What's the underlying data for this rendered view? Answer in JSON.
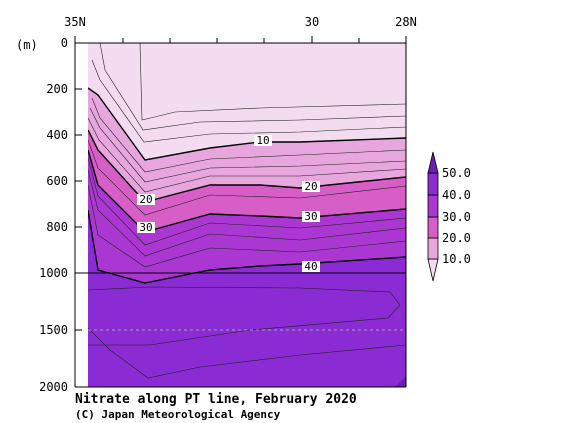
{
  "chart_data": {
    "type": "heatmap",
    "title": "Nitrate along PT line, February 2020",
    "credit": "(C) Japan Meteorological Agency",
    "ylabel": "(m)",
    "x_ticks": [
      "35N",
      "30",
      "28N"
    ],
    "y_ticks": [
      "0",
      "200",
      "400",
      "600",
      "800",
      "1000",
      "1500",
      "2000"
    ],
    "y_scale": "piecewise linear: 0-1000 m expanded, 1000-2000 m compressed",
    "ylim": [
      2000,
      0
    ],
    "contour_labels": [
      "10",
      "20",
      "30",
      "20",
      "30",
      "40"
    ],
    "colorbar": {
      "ticks": [
        "10.0",
        "20.0",
        "30.0",
        "40.0",
        "50.0"
      ],
      "colors": [
        "#f3dcef",
        "#e8a6df",
        "#d75ec6",
        "#aa37d2",
        "#8a2bd3",
        "#6a1fb0"
      ]
    },
    "contour_interval": 2,
    "isolines_depth_m": {
      "x_lat": [
        34.2,
        33.0,
        32.6,
        32.2,
        31.4,
        30.5,
        29.0,
        28.0
      ],
      "10": [
        null,
        330,
        510,
        495,
        445,
        430,
        425,
        415
      ],
      "20": [
        460,
        530,
        690,
        650,
        580,
        615,
        600,
        580
      ],
      "30": [
        570,
        660,
        775,
        750,
        710,
        725,
        735,
        700
      ],
      "40": [
        725,
        1010,
        1050,
        1030,
        995,
        970,
        960,
        930
      ]
    }
  }
}
